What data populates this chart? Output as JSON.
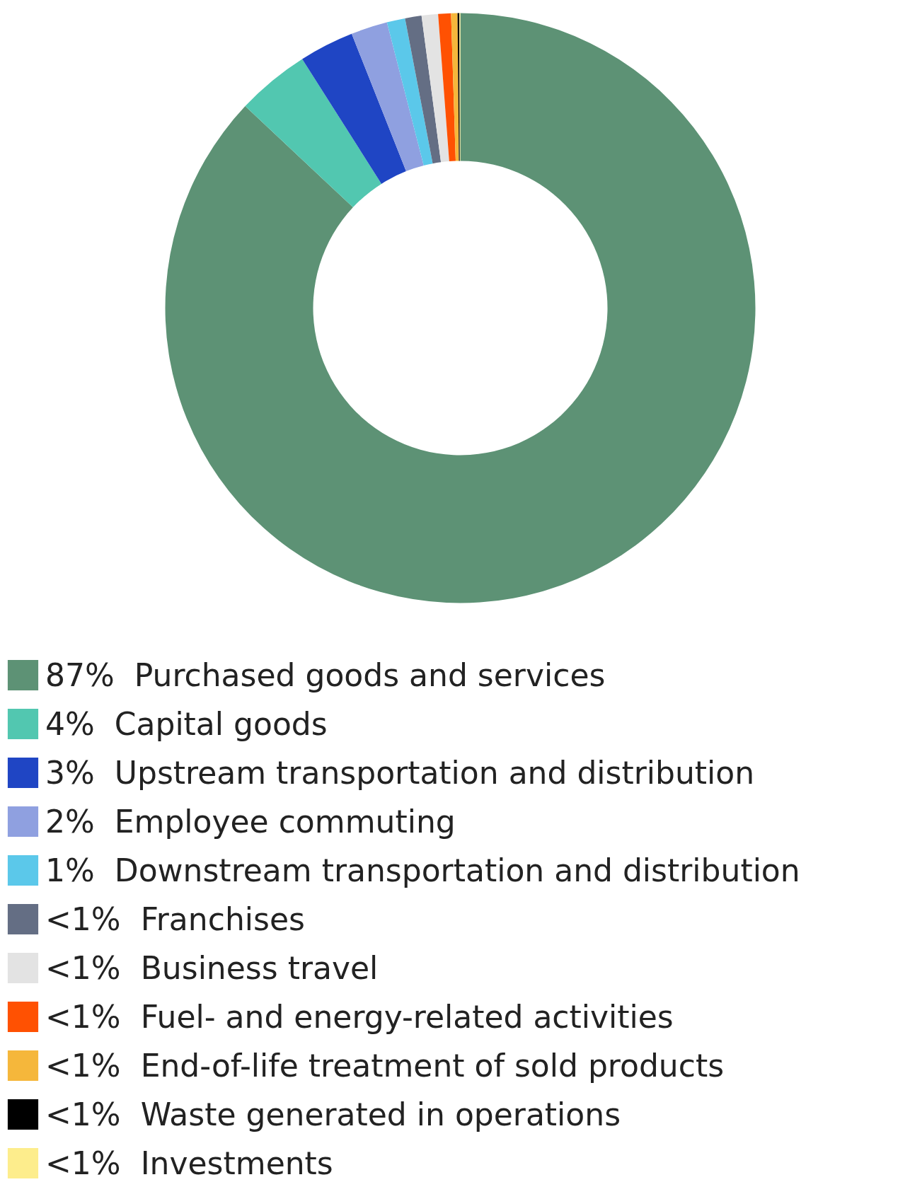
{
  "chart_data": {
    "type": "donut",
    "legend": "bottom",
    "categories": [
      "Purchased goods and services",
      "Capital goods",
      "Upstream transportation and distribution",
      "Employee commuting",
      "Downstream transportation and distribution",
      "Franchises",
      "Business travel",
      "Fuel- and energy-related activities",
      "End-of-life treatment of sold products",
      "Waste generated in operations",
      "Investments"
    ],
    "values": [
      87,
      4,
      3,
      2,
      1,
      0.9,
      0.9,
      0.7,
      0.35,
      0.1,
      0.05
    ],
    "value_labels": [
      "87%",
      "4%",
      "3%",
      "2%",
      "1%",
      "<1%",
      "<1%",
      "<1%",
      "<1%",
      "<1%",
      "<1%"
    ],
    "colors": [
      "#5d9275",
      "#52c7b0",
      "#1f45c4",
      "#8fa0e0",
      "#5bc8ea",
      "#646e84",
      "#e3e3e3",
      "#ff5102",
      "#f5b73b",
      "#000000",
      "#fded8c"
    ]
  }
}
